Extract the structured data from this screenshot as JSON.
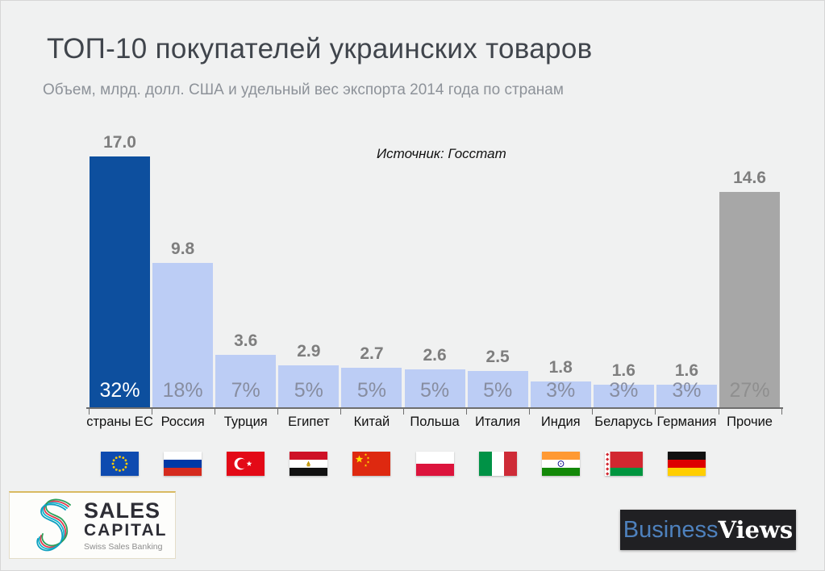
{
  "header": {
    "title": "ТОП-10 покупателей украинских товаров",
    "subtitle": "Объем, млрд. долл. США  и удельный вес экспорта 2014 года по странам"
  },
  "source_note": "Источник: Госстат",
  "chart_data": {
    "type": "bar",
    "title": "ТОП-10 покупателей украинских товаров",
    "subtitle": "Объем, млрд. долл. США и удельный вес экспорта 2014 года по странам",
    "source": "Источник: Госстат",
    "unit": "млрд. долл. США",
    "year": "2014",
    "categories": [
      "страны ЕС",
      "Россия",
      "Турция",
      "Египет",
      "Китай",
      "Польша",
      "Италия",
      "Индия",
      "Беларусь",
      "Германия",
      "Прочие"
    ],
    "values": [
      17.0,
      9.8,
      3.6,
      2.9,
      2.7,
      2.6,
      2.5,
      1.8,
      1.6,
      1.6,
      14.6
    ],
    "percents": [
      32,
      18,
      7,
      5,
      5,
      5,
      5,
      3,
      3,
      3,
      27
    ],
    "bar_colors": [
      "#0d4f9e",
      "#bccdf5",
      "#bccdf5",
      "#bccdf5",
      "#bccdf5",
      "#bccdf5",
      "#bccdf5",
      "#bccdf5",
      "#bccdf5",
      "#bccdf5",
      "#a7a7a7"
    ],
    "pct_colors": [
      "#ffffff",
      "#878da0",
      "#878da0",
      "#878da0",
      "#878da0",
      "#878da0",
      "#878da0",
      "#878da0",
      "#878da0",
      "#878da0",
      "#8f8f8f"
    ],
    "flags": [
      "eu",
      "russia",
      "turkey",
      "egypt",
      "china",
      "poland",
      "italy",
      "india",
      "belarus",
      "germany",
      ""
    ],
    "ylim": [
      0,
      17
    ],
    "grid": false,
    "legend": "none"
  },
  "footer": {
    "sales_capital": {
      "line1": "SALES",
      "line2": "CAPITAL",
      "tagline": "Swiss Sales Banking"
    },
    "businessviews": {
      "part1": "Business",
      "part2": "Views"
    }
  },
  "colors": {
    "background": "#f0f1f1",
    "bar_primary": "#0d4f9e",
    "bar_secondary": "#bccdf5",
    "bar_muted": "#a7a7a7",
    "value_label": "#7e7e7e",
    "title_text": "#40454c",
    "subtitle_text": "#8d9299",
    "businessviews_blue": "#4e81bd"
  }
}
